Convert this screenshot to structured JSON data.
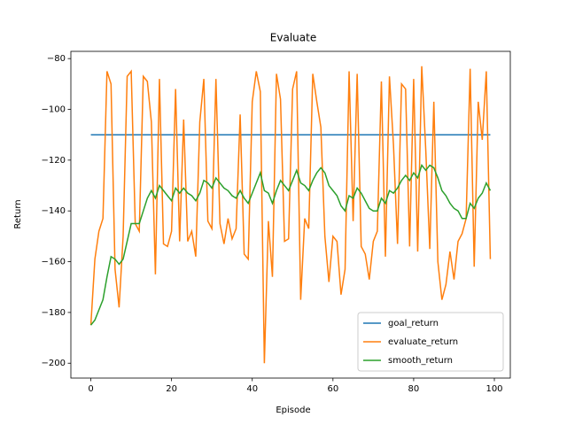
{
  "chart_data": {
    "type": "line",
    "title": "Evaluate",
    "x_label": "Episode",
    "y_label": "Return",
    "x": [
      0,
      1,
      2,
      3,
      4,
      5,
      6,
      7,
      8,
      9,
      10,
      11,
      12,
      13,
      14,
      15,
      16,
      17,
      18,
      19,
      20,
      21,
      22,
      23,
      24,
      25,
      26,
      27,
      28,
      29,
      30,
      31,
      32,
      33,
      34,
      35,
      36,
      37,
      38,
      39,
      40,
      41,
      42,
      43,
      44,
      45,
      46,
      47,
      48,
      49,
      50,
      51,
      52,
      53,
      54,
      55,
      56,
      57,
      58,
      59,
      60,
      61,
      62,
      63,
      64,
      65,
      66,
      67,
      68,
      69,
      70,
      71,
      72,
      73,
      74,
      75,
      76,
      77,
      78,
      79,
      80,
      81,
      82,
      83,
      84,
      85,
      86,
      87,
      88,
      89,
      90,
      91,
      92,
      93,
      94,
      95,
      96,
      97,
      98,
      99
    ],
    "series": [
      {
        "name": "goal_return",
        "color": "#1f77b4",
        "values": [
          -110,
          -110,
          -110,
          -110,
          -110,
          -110,
          -110,
          -110,
          -110,
          -110,
          -110,
          -110,
          -110,
          -110,
          -110,
          -110,
          -110,
          -110,
          -110,
          -110,
          -110,
          -110,
          -110,
          -110,
          -110,
          -110,
          -110,
          -110,
          -110,
          -110,
          -110,
          -110,
          -110,
          -110,
          -110,
          -110,
          -110,
          -110,
          -110,
          -110,
          -110,
          -110,
          -110,
          -110,
          -110,
          -110,
          -110,
          -110,
          -110,
          -110,
          -110,
          -110,
          -110,
          -110,
          -110,
          -110,
          -110,
          -110,
          -110,
          -110,
          -110,
          -110,
          -110,
          -110,
          -110,
          -110,
          -110,
          -110,
          -110,
          -110,
          -110,
          -110,
          -110,
          -110,
          -110,
          -110,
          -110,
          -110,
          -110,
          -110,
          -110,
          -110,
          -110,
          -110,
          -110,
          -110,
          -110,
          -110,
          -110,
          -110,
          -110,
          -110,
          -110,
          -110,
          -110,
          -110,
          -110,
          -110,
          -110,
          -110
        ]
      },
      {
        "name": "evaluate_return",
        "color": "#ff7f0e",
        "values": [
          -185,
          -159,
          -148,
          -143,
          -85,
          -90,
          -163,
          -178,
          -150,
          -87,
          -85,
          -145,
          -148,
          -87,
          -89,
          -105,
          -165,
          -88,
          -153,
          -154,
          -148,
          -92,
          -152,
          -104,
          -152,
          -148,
          -158,
          -105,
          -88,
          -144,
          -147,
          -88,
          -145,
          -153,
          -143,
          -151,
          -147,
          -102,
          -157,
          -159,
          -97,
          -85,
          -93,
          -200,
          -144,
          -166,
          -86,
          -96,
          -152,
          -151,
          -92,
          -85,
          -175,
          -143,
          -147,
          -86,
          -97,
          -107,
          -150,
          -168,
          -150,
          -152,
          -173,
          -163,
          -85,
          -144,
          -86,
          -154,
          -157,
          -167,
          -152,
          -148,
          -89,
          -158,
          -87,
          -114,
          -153,
          -90,
          -92,
          -154,
          -88,
          -156,
          -83,
          -116,
          -155,
          -97,
          -160,
          -175,
          -169,
          -156,
          -167,
          -152,
          -149,
          -143,
          -84,
          -162,
          -97,
          -112,
          -85,
          -159
        ]
      },
      {
        "name": "smooth_return",
        "color": "#2ca02c",
        "values": [
          -185,
          -183,
          -179,
          -175,
          -166,
          -158,
          -159,
          -161,
          -159,
          -152,
          -145,
          -145,
          -145,
          -140,
          -135,
          -132,
          -135,
          -130,
          -132,
          -134,
          -136,
          -131,
          -133,
          -131,
          -133,
          -134,
          -136,
          -133,
          -128,
          -129,
          -131,
          -127,
          -129,
          -131,
          -132,
          -134,
          -135,
          -132,
          -135,
          -137,
          -133,
          -129,
          -125,
          -132,
          -133,
          -137,
          -132,
          -128,
          -130,
          -132,
          -128,
          -124,
          -129,
          -130,
          -132,
          -128,
          -125,
          -123,
          -125,
          -130,
          -132,
          -134,
          -138,
          -140,
          -134,
          -135,
          -131,
          -133,
          -136,
          -139,
          -140,
          -140,
          -135,
          -137,
          -132,
          -133,
          -131,
          -128,
          -126,
          -128,
          -125,
          -127,
          -122,
          -124,
          -122,
          -123,
          -127,
          -132,
          -134,
          -137,
          -139,
          -140,
          -143,
          -143,
          -137,
          -139,
          -135,
          -133,
          -129,
          -132
        ]
      }
    ],
    "xlim": [
      -4.95,
      103.95
    ],
    "ylim": [
      -205.85,
      -77.15
    ],
    "xticks": [
      0,
      20,
      40,
      60,
      80,
      100
    ],
    "yticks": [
      {
        "value": -200,
        "label": "−200"
      },
      {
        "value": -180,
        "label": "−180"
      },
      {
        "value": -160,
        "label": "−160"
      },
      {
        "value": -140,
        "label": "−140"
      },
      {
        "value": -120,
        "label": "−120"
      },
      {
        "value": -100,
        "label": "−100"
      },
      {
        "value": -80,
        "label": "−80"
      }
    ],
    "legend": "lower right"
  }
}
